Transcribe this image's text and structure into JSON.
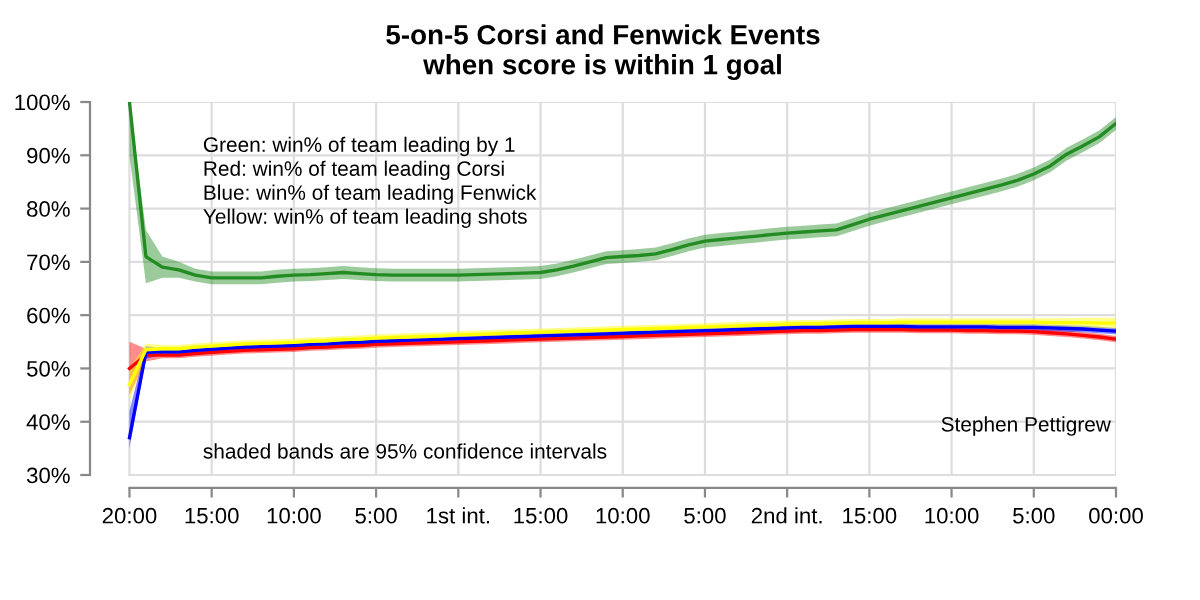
{
  "chart_data": {
    "type": "line",
    "title": "5-on-5 Corsi and Fenwick Events\nwhen score is within 1 goal",
    "categories": [
      "20:00",
      null,
      null,
      null,
      null,
      "15:00",
      null,
      null,
      null,
      null,
      "10:00",
      null,
      null,
      null,
      null,
      "5:00",
      null,
      null,
      null,
      null,
      "1st int.",
      null,
      null,
      null,
      null,
      "15:00",
      null,
      null,
      null,
      null,
      "10:00",
      null,
      null,
      null,
      null,
      "5:00",
      null,
      null,
      null,
      null,
      "2nd int.",
      null,
      null,
      null,
      null,
      "15:00",
      null,
      null,
      null,
      null,
      "10:00",
      null,
      null,
      null,
      null,
      "5:00",
      null,
      null,
      null,
      null,
      "00:00"
    ],
    "ylim": [
      27.6,
      100
    ],
    "yticks": [
      {
        "value": 30,
        "label": "30%"
      },
      {
        "value": 40,
        "label": "40%"
      },
      {
        "value": 50,
        "label": "50%"
      },
      {
        "value": 60,
        "label": "60%"
      },
      {
        "value": 70,
        "label": "70%"
      },
      {
        "value": 80,
        "label": "80%"
      },
      {
        "value": 90,
        "label": "90%"
      },
      {
        "value": 100,
        "label": "100%"
      }
    ],
    "grid": true,
    "marker": "none",
    "line_style": "solid",
    "series": [
      {
        "color": "#ff0000",
        "values": [
          50,
          52.5,
          52.5,
          52.5,
          52.8,
          53,
          53.2,
          53.4,
          53.5,
          53.6,
          53.7,
          53.9,
          54,
          54.2,
          54.3,
          54.5,
          54.6,
          54.7,
          54.8,
          54.9,
          55,
          55.1,
          55.2,
          55.3,
          55.4,
          55.5,
          55.6,
          55.7,
          55.8,
          55.9,
          56,
          56.1,
          56.2,
          56.3,
          56.4,
          56.5,
          56.6,
          56.7,
          56.8,
          56.9,
          57,
          57.1,
          57.1,
          57.2,
          57.3,
          57.3,
          57.3,
          57.3,
          57.2,
          57.2,
          57.2,
          57.1,
          57.1,
          57,
          57,
          56.9,
          56.7,
          56.5,
          56.2,
          55.9,
          55.5
        ],
        "lower": [
          45,
          51.3,
          51.9,
          51.9,
          52.2,
          52.4,
          52.6,
          52.8,
          52.9,
          53,
          53.1,
          53.3,
          53.4,
          53.6,
          53.7,
          53.9,
          54,
          54.1,
          54.2,
          54.3,
          54.4,
          54.5,
          54.6,
          54.7,
          54.8,
          54.9,
          55,
          55.1,
          55.2,
          55.3,
          55.4,
          55.5,
          55.6,
          55.7,
          55.8,
          55.9,
          56,
          56.1,
          56.2,
          56.3,
          56.4,
          56.5,
          56.5,
          56.6,
          56.7,
          56.7,
          56.7,
          56.7,
          56.6,
          56.6,
          56.6,
          56.5,
          56.5,
          56.4,
          56.4,
          56.3,
          56.1,
          55.9,
          55.6,
          55.3,
          54.9
        ],
        "upper": [
          55,
          53.7,
          53.1,
          53.1,
          53.4,
          53.6,
          53.8,
          54,
          54.1,
          54.2,
          54.3,
          54.5,
          54.6,
          54.8,
          54.9,
          55.1,
          55.2,
          55.3,
          55.4,
          55.5,
          55.6,
          55.7,
          55.8,
          55.9,
          56,
          56.1,
          56.2,
          56.3,
          56.4,
          56.5,
          56.6,
          56.7,
          56.8,
          56.9,
          57,
          57.1,
          57.2,
          57.3,
          57.4,
          57.5,
          57.6,
          57.7,
          57.7,
          57.8,
          57.9,
          57.9,
          57.9,
          57.9,
          57.8,
          57.8,
          57.8,
          57.7,
          57.7,
          57.6,
          57.6,
          57.5,
          57.3,
          57.1,
          56.8,
          56.5,
          56.1
        ]
      },
      {
        "color": "#0000ff",
        "values": [
          37,
          53,
          53.1,
          53.1,
          53.4,
          53.6,
          53.8,
          54,
          54.1,
          54.2,
          54.3,
          54.5,
          54.6,
          54.8,
          54.9,
          55.1,
          55.2,
          55.3,
          55.4,
          55.5,
          55.6,
          55.7,
          55.8,
          55.9,
          56,
          56.1,
          56.2,
          56.3,
          56.4,
          56.5,
          56.6,
          56.7,
          56.8,
          56.9,
          57,
          57.1,
          57.2,
          57.3,
          57.4,
          57.5,
          57.6,
          57.7,
          57.7,
          57.8,
          57.9,
          57.9,
          57.9,
          57.9,
          57.8,
          57.8,
          57.8,
          57.8,
          57.8,
          57.7,
          57.7,
          57.7,
          57.6,
          57.5,
          57.4,
          57.2,
          57
        ],
        "lower": [
          35,
          51.8,
          52.5,
          52.5,
          52.8,
          53,
          53.2,
          53.4,
          53.5,
          53.6,
          53.7,
          53.9,
          54,
          54.2,
          54.3,
          54.5,
          54.6,
          54.7,
          54.8,
          54.9,
          55,
          55.1,
          55.2,
          55.3,
          55.4,
          55.5,
          55.6,
          55.7,
          55.8,
          55.9,
          56,
          56.1,
          56.2,
          56.3,
          56.4,
          56.5,
          56.6,
          56.7,
          56.8,
          56.9,
          57,
          57.1,
          57.1,
          57.2,
          57.3,
          57.3,
          57.3,
          57.3,
          57.2,
          57.2,
          57.2,
          57.2,
          57.2,
          57.1,
          57.1,
          57.1,
          57,
          56.9,
          56.8,
          56.6,
          56.4
        ],
        "upper": [
          42,
          54.2,
          53.7,
          53.7,
          54,
          54.2,
          54.4,
          54.6,
          54.7,
          54.8,
          54.9,
          55.1,
          55.2,
          55.4,
          55.5,
          55.7,
          55.8,
          55.9,
          56,
          56.1,
          56.2,
          56.3,
          56.4,
          56.5,
          56.6,
          56.7,
          56.8,
          56.9,
          57,
          57.1,
          57.2,
          57.3,
          57.4,
          57.5,
          57.6,
          57.7,
          57.8,
          57.9,
          58,
          58.1,
          58.2,
          58.3,
          58.3,
          58.4,
          58.5,
          58.5,
          58.5,
          58.5,
          58.4,
          58.4,
          58.4,
          58.4,
          58.4,
          58.3,
          58.3,
          58.3,
          58.2,
          58.1,
          58,
          57.8,
          57.6
        ]
      },
      {
        "color": "#ffff00",
        "values": [
          47,
          53.5,
          53.7,
          53.7,
          54,
          54.2,
          54.4,
          54.6,
          54.7,
          54.8,
          54.9,
          55.1,
          55.2,
          55.4,
          55.5,
          55.7,
          55.8,
          55.9,
          56,
          56.1,
          56.3,
          56.4,
          56.5,
          56.6,
          56.7,
          56.8,
          56.9,
          57,
          57.1,
          57.2,
          57.3,
          57.4,
          57.5,
          57.6,
          57.7,
          57.8,
          57.9,
          58,
          58.1,
          58.2,
          58.3,
          58.4,
          58.4,
          58.5,
          58.6,
          58.6,
          58.6,
          58.7,
          58.7,
          58.7,
          58.7,
          58.7,
          58.7,
          58.7,
          58.7,
          58.7,
          58.6,
          58.6,
          58.6,
          58.5,
          58.5
        ],
        "lower": [
          44,
          52.3,
          53,
          53,
          53.3,
          53.5,
          53.7,
          53.9,
          54,
          54.1,
          54.2,
          54.4,
          54.5,
          54.7,
          54.8,
          55,
          55.1,
          55.2,
          55.3,
          55.4,
          55.6,
          55.7,
          55.8,
          55.9,
          56,
          56.1,
          56.2,
          56.3,
          56.4,
          56.5,
          56.6,
          56.7,
          56.8,
          56.9,
          57,
          57.1,
          57.2,
          57.3,
          57.4,
          57.5,
          57.6,
          57.7,
          57.7,
          57.8,
          57.9,
          57.9,
          57.9,
          58,
          58,
          58,
          58,
          58,
          58,
          58,
          58,
          58,
          57.9,
          57.8,
          57.7,
          57.6,
          57.5
        ],
        "upper": [
          50,
          54.7,
          54.4,
          54.4,
          54.7,
          54.9,
          55.1,
          55.3,
          55.4,
          55.5,
          55.6,
          55.8,
          55.9,
          56.1,
          56.2,
          56.4,
          56.5,
          56.6,
          56.7,
          56.8,
          57,
          57.1,
          57.2,
          57.3,
          57.4,
          57.5,
          57.6,
          57.7,
          57.8,
          57.9,
          58,
          58.1,
          58.2,
          58.3,
          58.4,
          58.5,
          58.6,
          58.7,
          58.8,
          58.9,
          59,
          59.1,
          59.1,
          59.2,
          59.3,
          59.3,
          59.3,
          59.4,
          59.4,
          59.4,
          59.4,
          59.4,
          59.4,
          59.4,
          59.4,
          59.4,
          59.4,
          59.4,
          59.5,
          59.5,
          59.5
        ]
      },
      {
        "color": "#228b22",
        "values": [
          100,
          71,
          69,
          68.5,
          67.5,
          67,
          67,
          67,
          67,
          67.3,
          67.5,
          67.6,
          67.8,
          68,
          67.8,
          67.6,
          67.5,
          67.5,
          67.5,
          67.5,
          67.5,
          67.6,
          67.7,
          67.8,
          67.9,
          68,
          68.5,
          69.2,
          70,
          70.8,
          71,
          71.2,
          71.5,
          72.3,
          73.2,
          73.9,
          74.2,
          74.5,
          74.8,
          75.1,
          75.4,
          75.6,
          75.8,
          76,
          77,
          78,
          78.8,
          79.6,
          80.4,
          81.2,
          82,
          82.8,
          83.6,
          84.4,
          85.3,
          86.5,
          88,
          90.2,
          91.8,
          93.5,
          96
        ],
        "lower": [
          90,
          66,
          67,
          67,
          66.3,
          65.8,
          65.8,
          65.8,
          65.8,
          66.1,
          66.3,
          66.4,
          66.6,
          66.8,
          66.6,
          66.4,
          66.3,
          66.3,
          66.3,
          66.3,
          66.3,
          66.4,
          66.5,
          66.6,
          66.7,
          66.8,
          67.3,
          68,
          68.8,
          69.6,
          69.8,
          70,
          70.3,
          71.1,
          72,
          72.7,
          73,
          73.3,
          73.6,
          73.9,
          74.2,
          74.4,
          74.6,
          74.8,
          75.8,
          76.8,
          77.6,
          78.4,
          79.2,
          80,
          80.8,
          81.6,
          82.4,
          83.2,
          84.1,
          85.3,
          86.8,
          89,
          90.6,
          92.3,
          94.8
        ],
        "upper": [
          100,
          76,
          71,
          70,
          68.7,
          68.2,
          68.2,
          68.2,
          68.2,
          68.5,
          68.7,
          68.8,
          69,
          69.2,
          69,
          68.8,
          68.7,
          68.7,
          68.7,
          68.7,
          68.7,
          68.8,
          68.9,
          69,
          69.1,
          69.2,
          69.7,
          70.4,
          71.2,
          72,
          72.2,
          72.4,
          72.7,
          73.5,
          74.4,
          75.1,
          75.4,
          75.7,
          76,
          76.3,
          76.6,
          76.8,
          77,
          77.2,
          78.2,
          79.2,
          80,
          80.8,
          81.6,
          82.4,
          83.2,
          84,
          84.8,
          85.6,
          86.5,
          87.7,
          89.2,
          91.4,
          93,
          94.7,
          97.2
        ]
      }
    ],
    "annotations": [
      "Green: win% of team leading by 1",
      "Red: win% of team leading Corsi",
      "Blue: win% of team leading Fenwick",
      "Yellow: win% of team leading shots",
      "shaded bands are 95% confidence intervals",
      "Stephen Pettigrew"
    ]
  }
}
